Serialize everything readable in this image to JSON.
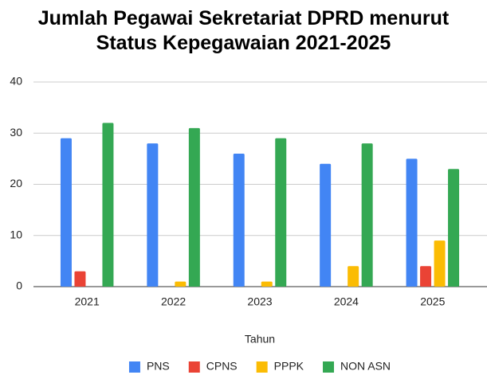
{
  "chart_data": {
    "type": "bar",
    "title": "Jumlah Pegawai Sekretariat DPRD menurut Status Kepegawaian 2021-2025",
    "x_label": "Tahun",
    "categories": [
      "2021",
      "2022",
      "2023",
      "2024",
      "2025"
    ],
    "series": [
      {
        "name": "PNS",
        "color": "#4285f4",
        "values": [
          29,
          28,
          26,
          24,
          25
        ]
      },
      {
        "name": "CPNS",
        "color": "#ea4335",
        "values": [
          3,
          0,
          0,
          0,
          4
        ]
      },
      {
        "name": "PPPK",
        "color": "#fbbc04",
        "values": [
          0,
          1,
          1,
          4,
          9
        ]
      },
      {
        "name": "NON ASN",
        "color": "#34a853",
        "values": [
          32,
          31,
          29,
          28,
          23
        ]
      }
    ],
    "ylim": [
      0,
      40
    ],
    "yticks": [
      0,
      10,
      20,
      30,
      40
    ],
    "grid": true,
    "legend": "bottom"
  }
}
